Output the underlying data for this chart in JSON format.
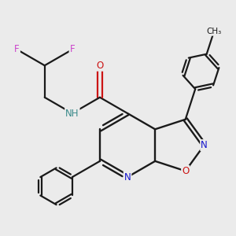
{
  "bg_color": "#ebebeb",
  "atom_colors": {
    "C": "#1a1a1a",
    "N": "#1414cc",
    "O": "#cc1414",
    "F": "#cc44cc",
    "H": "#3a8a8a"
  },
  "bond_color": "#1a1a1a",
  "figsize": [
    3.0,
    3.0
  ],
  "dpi": 100
}
